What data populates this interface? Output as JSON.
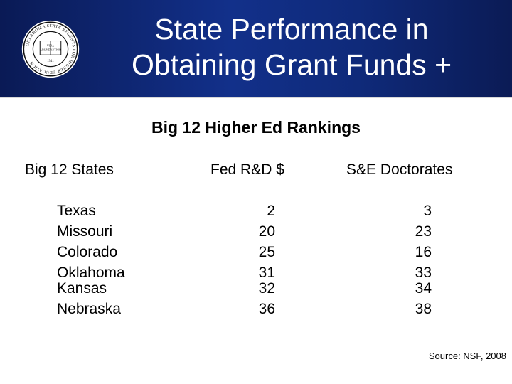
{
  "header": {
    "title_line1": "State Performance in",
    "title_line2": "Obtaining Grant Funds +",
    "seal": {
      "ring_text": "OKLAHOMA STATE REGENTS FOR HIGHER EDUCATION",
      "book_text": "VIDA ABUNDANTIOR",
      "year": "1941"
    }
  },
  "subtitle": "Big 12 Higher Ed Rankings",
  "table": {
    "columns": [
      "Big 12 States",
      "Fed R&D $",
      "S&E Doctorates"
    ],
    "rows": [
      {
        "state": "Texas",
        "fed_rd": "2",
        "se_doctorates": "3"
      },
      {
        "state": "Missouri",
        "fed_rd": "20",
        "se_doctorates": "23"
      },
      {
        "state": "Colorado",
        "fed_rd": "25",
        "se_doctorates": "16"
      },
      {
        "state": "Oklahoma",
        "fed_rd": "31",
        "se_doctorates": "33"
      },
      {
        "state": "Kansas",
        "fed_rd": "32",
        "se_doctorates": "34"
      },
      {
        "state": "Nebraska",
        "fed_rd": "36",
        "se_doctorates": "38"
      }
    ]
  },
  "source": "Source: NSF, 2008"
}
